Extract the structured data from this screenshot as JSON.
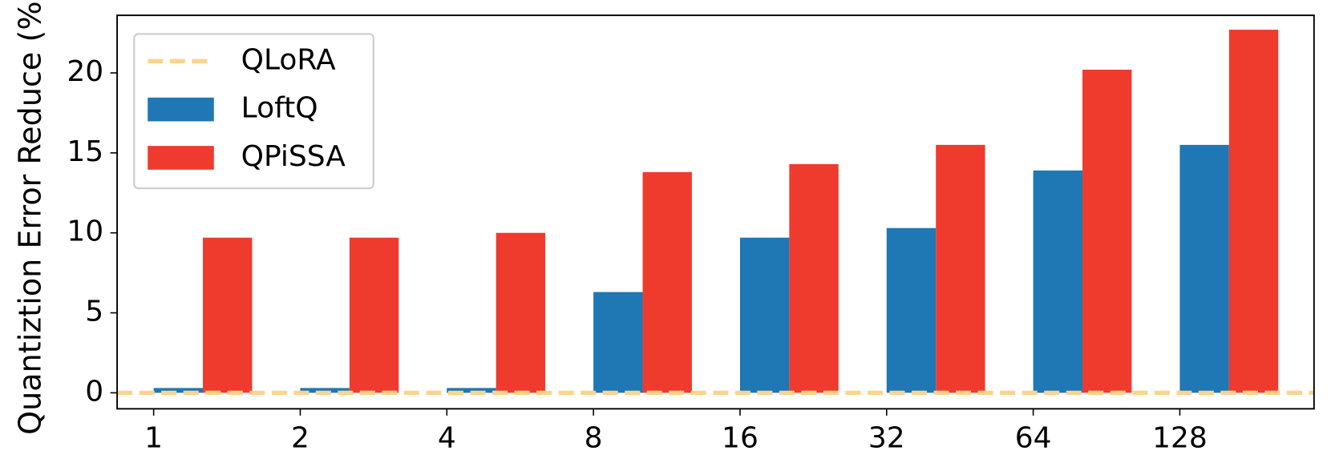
{
  "chart_data": {
    "type": "bar",
    "ylabel": "Quantiztion Error Reduce (%)",
    "categories": [
      "1",
      "2",
      "4",
      "8",
      "16",
      "32",
      "64",
      "128"
    ],
    "series": [
      {
        "name": "LoftQ",
        "color": "#1f77b4",
        "values": [
          0.3,
          0.3,
          0.3,
          6.3,
          9.7,
          10.3,
          13.9,
          15.5
        ]
      },
      {
        "name": "QPiSSA",
        "color": "#ee3b2e",
        "values": [
          9.7,
          9.7,
          10.0,
          13.8,
          14.3,
          15.5,
          20.2,
          22.7
        ]
      }
    ],
    "reference_line": {
      "name": "QLoRA",
      "color": "#fdd48a",
      "value": 0
    },
    "ylim": [
      -1,
      23.6
    ],
    "yticks": [
      0,
      5,
      10,
      15,
      20
    ],
    "legend": "upper left"
  }
}
